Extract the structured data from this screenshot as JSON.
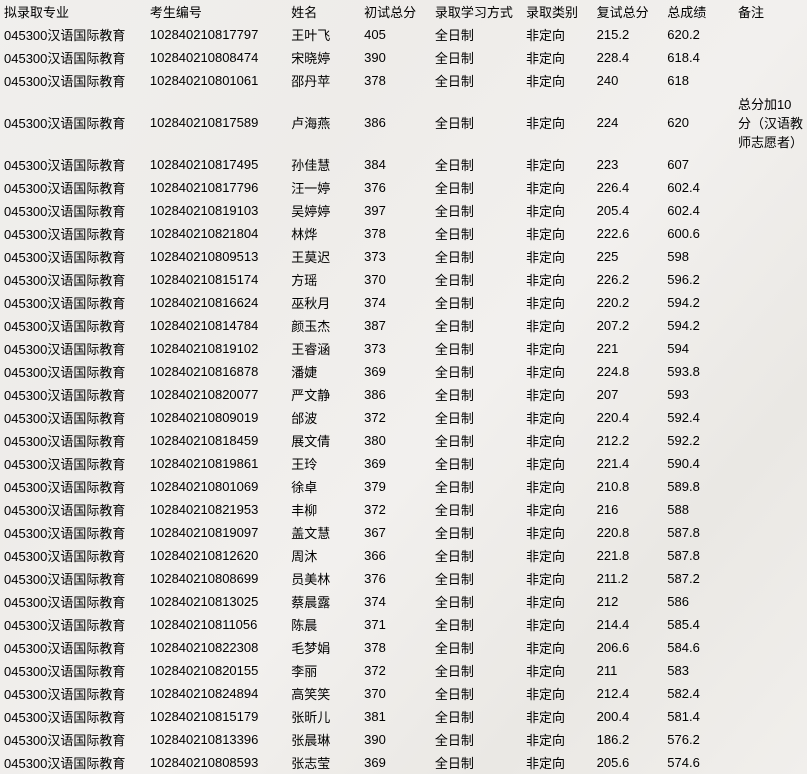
{
  "columns": [
    {
      "key": "major",
      "label": "拟录取专业"
    },
    {
      "key": "id",
      "label": "考生编号"
    },
    {
      "key": "name",
      "label": "姓名"
    },
    {
      "key": "score1",
      "label": "初试总分"
    },
    {
      "key": "mode",
      "label": "录取学习方式"
    },
    {
      "key": "type",
      "label": "录取类别"
    },
    {
      "key": "score2",
      "label": "复试总分"
    },
    {
      "key": "total",
      "label": "总成绩"
    },
    {
      "key": "remark",
      "label": "备注"
    }
  ],
  "rows": [
    {
      "major": "045300汉语国际教育",
      "id": "102840210817797",
      "name": "王叶飞",
      "score1": "405",
      "mode": "全日制",
      "type": "非定向",
      "score2": "215.2",
      "total": "620.2",
      "remark": ""
    },
    {
      "major": "045300汉语国际教育",
      "id": "102840210808474",
      "name": "宋晓婷",
      "score1": "390",
      "mode": "全日制",
      "type": "非定向",
      "score2": "228.4",
      "total": "618.4",
      "remark": ""
    },
    {
      "major": "045300汉语国际教育",
      "id": "102840210801061",
      "name": "邵丹苹",
      "score1": "378",
      "mode": "全日制",
      "type": "非定向",
      "score2": "240",
      "total": "618",
      "remark": ""
    },
    {
      "major": "045300汉语国际教育",
      "id": "102840210817589",
      "name": "卢海燕",
      "score1": "386",
      "mode": "全日制",
      "type": "非定向",
      "score2": "224",
      "total": "620",
      "remark": "总分加10分（汉语教师志愿者）"
    },
    {
      "major": "045300汉语国际教育",
      "id": "102840210817495",
      "name": "孙佳慧",
      "score1": "384",
      "mode": "全日制",
      "type": "非定向",
      "score2": "223",
      "total": "607",
      "remark": ""
    },
    {
      "major": "045300汉语国际教育",
      "id": "102840210817796",
      "name": "汪一婷",
      "score1": "376",
      "mode": "全日制",
      "type": "非定向",
      "score2": "226.4",
      "total": "602.4",
      "remark": ""
    },
    {
      "major": "045300汉语国际教育",
      "id": "102840210819103",
      "name": "吴婷婷",
      "score1": "397",
      "mode": "全日制",
      "type": "非定向",
      "score2": "205.4",
      "total": "602.4",
      "remark": ""
    },
    {
      "major": "045300汉语国际教育",
      "id": "102840210821804",
      "name": "林烨",
      "score1": "378",
      "mode": "全日制",
      "type": "非定向",
      "score2": "222.6",
      "total": "600.6",
      "remark": ""
    },
    {
      "major": "045300汉语国际教育",
      "id": "102840210809513",
      "name": "王莫迟",
      "score1": "373",
      "mode": "全日制",
      "type": "非定向",
      "score2": "225",
      "total": "598",
      "remark": ""
    },
    {
      "major": "045300汉语国际教育",
      "id": "102840210815174",
      "name": "方瑶",
      "score1": "370",
      "mode": "全日制",
      "type": "非定向",
      "score2": "226.2",
      "total": "596.2",
      "remark": ""
    },
    {
      "major": "045300汉语国际教育",
      "id": "102840210816624",
      "name": "巫秋月",
      "score1": "374",
      "mode": "全日制",
      "type": "非定向",
      "score2": "220.2",
      "total": "594.2",
      "remark": ""
    },
    {
      "major": "045300汉语国际教育",
      "id": "102840210814784",
      "name": "颜玉杰",
      "score1": "387",
      "mode": "全日制",
      "type": "非定向",
      "score2": "207.2",
      "total": "594.2",
      "remark": ""
    },
    {
      "major": "045300汉语国际教育",
      "id": "102840210819102",
      "name": "王睿涵",
      "score1": "373",
      "mode": "全日制",
      "type": "非定向",
      "score2": "221",
      "total": "594",
      "remark": ""
    },
    {
      "major": "045300汉语国际教育",
      "id": "102840210816878",
      "name": "潘婕",
      "score1": "369",
      "mode": "全日制",
      "type": "非定向",
      "score2": "224.8",
      "total": "593.8",
      "remark": ""
    },
    {
      "major": "045300汉语国际教育",
      "id": "102840210820077",
      "name": "严文静",
      "score1": "386",
      "mode": "全日制",
      "type": "非定向",
      "score2": "207",
      "total": "593",
      "remark": ""
    },
    {
      "major": "045300汉语国际教育",
      "id": "102840210809019",
      "name": "邰波",
      "score1": "372",
      "mode": "全日制",
      "type": "非定向",
      "score2": "220.4",
      "total": "592.4",
      "remark": ""
    },
    {
      "major": "045300汉语国际教育",
      "id": "102840210818459",
      "name": "展文倩",
      "score1": "380",
      "mode": "全日制",
      "type": "非定向",
      "score2": "212.2",
      "total": "592.2",
      "remark": ""
    },
    {
      "major": "045300汉语国际教育",
      "id": "102840210819861",
      "name": "王玲",
      "score1": "369",
      "mode": "全日制",
      "type": "非定向",
      "score2": "221.4",
      "total": "590.4",
      "remark": ""
    },
    {
      "major": "045300汉语国际教育",
      "id": "102840210801069",
      "name": "徐卓",
      "score1": "379",
      "mode": "全日制",
      "type": "非定向",
      "score2": "210.8",
      "total": "589.8",
      "remark": ""
    },
    {
      "major": "045300汉语国际教育",
      "id": "102840210821953",
      "name": "丰柳",
      "score1": "372",
      "mode": "全日制",
      "type": "非定向",
      "score2": "216",
      "total": "588",
      "remark": ""
    },
    {
      "major": "045300汉语国际教育",
      "id": "102840210819097",
      "name": "盖文慧",
      "score1": "367",
      "mode": "全日制",
      "type": "非定向",
      "score2": "220.8",
      "total": "587.8",
      "remark": ""
    },
    {
      "major": "045300汉语国际教育",
      "id": "102840210812620",
      "name": "周沐",
      "score1": "366",
      "mode": "全日制",
      "type": "非定向",
      "score2": "221.8",
      "total": "587.8",
      "remark": ""
    },
    {
      "major": "045300汉语国际教育",
      "id": "102840210808699",
      "name": "员美林",
      "score1": "376",
      "mode": "全日制",
      "type": "非定向",
      "score2": "211.2",
      "total": "587.2",
      "remark": ""
    },
    {
      "major": "045300汉语国际教育",
      "id": "102840210813025",
      "name": "蔡晨露",
      "score1": "374",
      "mode": "全日制",
      "type": "非定向",
      "score2": "212",
      "total": "586",
      "remark": ""
    },
    {
      "major": "045300汉语国际教育",
      "id": "102840210811056",
      "name": "陈晨",
      "score1": "371",
      "mode": "全日制",
      "type": "非定向",
      "score2": "214.4",
      "total": "585.4",
      "remark": ""
    },
    {
      "major": "045300汉语国际教育",
      "id": "102840210822308",
      "name": "毛梦娟",
      "score1": "378",
      "mode": "全日制",
      "type": "非定向",
      "score2": "206.6",
      "total": "584.6",
      "remark": ""
    },
    {
      "major": "045300汉语国际教育",
      "id": "102840210820155",
      "name": "李丽",
      "score1": "372",
      "mode": "全日制",
      "type": "非定向",
      "score2": "211",
      "total": "583",
      "remark": ""
    },
    {
      "major": "045300汉语国际教育",
      "id": "102840210824894",
      "name": "高笑笑",
      "score1": "370",
      "mode": "全日制",
      "type": "非定向",
      "score2": "212.4",
      "total": "582.4",
      "remark": ""
    },
    {
      "major": "045300汉语国际教育",
      "id": "102840210815179",
      "name": "张昕儿",
      "score1": "381",
      "mode": "全日制",
      "type": "非定向",
      "score2": "200.4",
      "total": "581.4",
      "remark": ""
    },
    {
      "major": "045300汉语国际教育",
      "id": "102840210813396",
      "name": "张晨琳",
      "score1": "390",
      "mode": "全日制",
      "type": "非定向",
      "score2": "186.2",
      "total": "576.2",
      "remark": ""
    },
    {
      "major": "045300汉语国际教育",
      "id": "102840210808593",
      "name": "张志莹",
      "score1": "369",
      "mode": "全日制",
      "type": "非定向",
      "score2": "205.6",
      "total": "574.6",
      "remark": ""
    }
  ]
}
